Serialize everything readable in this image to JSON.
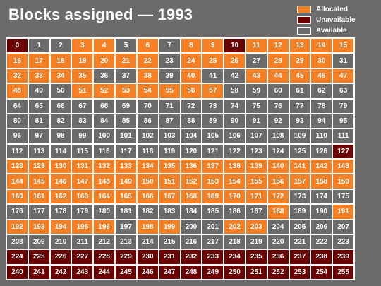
{
  "chart_data": {
    "type": "heatmap",
    "title": "Blocks assigned — 1993",
    "columns": 16,
    "rows": 16,
    "legend_position": "top-right",
    "categories": {
      "allocated": {
        "label": "Allocated",
        "color": "#f47f24"
      },
      "unavailable": {
        "label": "Unavailable",
        "color": "#6b0000"
      },
      "available": {
        "label": "Available",
        "color": "#6b6b6b"
      }
    },
    "legend": [
      "allocated",
      "unavailable",
      "available"
    ],
    "blocks": {
      "unavailable": [
        0,
        10,
        127,
        224,
        225,
        226,
        227,
        228,
        229,
        230,
        231,
        232,
        233,
        234,
        235,
        236,
        237,
        238,
        239,
        240,
        241,
        242,
        243,
        244,
        245,
        246,
        247,
        248,
        249,
        250,
        251,
        252,
        253,
        254,
        255
      ],
      "allocated": [
        3,
        4,
        6,
        8,
        9,
        11,
        12,
        13,
        14,
        15,
        16,
        17,
        18,
        19,
        20,
        21,
        22,
        24,
        25,
        26,
        28,
        29,
        30,
        32,
        33,
        34,
        35,
        38,
        40,
        43,
        44,
        45,
        46,
        47,
        48,
        51,
        52,
        53,
        54,
        55,
        56,
        57,
        128,
        129,
        130,
        131,
        132,
        133,
        134,
        135,
        136,
        137,
        138,
        139,
        140,
        141,
        142,
        143,
        144,
        145,
        146,
        147,
        148,
        149,
        150,
        151,
        152,
        153,
        154,
        155,
        156,
        157,
        158,
        159,
        160,
        161,
        162,
        163,
        164,
        165,
        166,
        167,
        168,
        169,
        170,
        171,
        172,
        188,
        191,
        192,
        193,
        194,
        195,
        196,
        198,
        199,
        202,
        203
      ]
    }
  }
}
